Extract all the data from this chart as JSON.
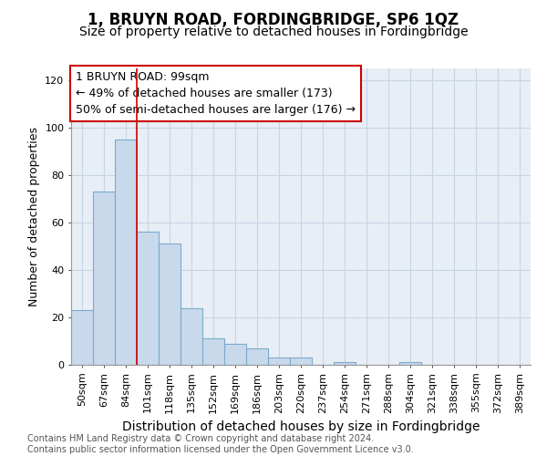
{
  "title": "1, BRUYN ROAD, FORDINGBRIDGE, SP6 1QZ",
  "subtitle": "Size of property relative to detached houses in Fordingbridge",
  "xlabel": "Distribution of detached houses by size in Fordingbridge",
  "ylabel": "Number of detached properties",
  "categories": [
    "50sqm",
    "67sqm",
    "84sqm",
    "101sqm",
    "118sqm",
    "135sqm",
    "152sqm",
    "169sqm",
    "186sqm",
    "203sqm",
    "220sqm",
    "237sqm",
    "254sqm",
    "271sqm",
    "288sqm",
    "304sqm",
    "321sqm",
    "338sqm",
    "355sqm",
    "372sqm",
    "389sqm"
  ],
  "values": [
    23,
    73,
    95,
    56,
    51,
    24,
    11,
    9,
    7,
    3,
    3,
    0,
    1,
    0,
    0,
    1,
    0,
    0,
    0,
    0,
    0
  ],
  "bar_color": "#c9d9ec",
  "bar_edge_color": "#7aaacc",
  "annotation_text": "1 BRUYN ROAD: 99sqm\n← 49% of detached houses are smaller (173)\n50% of semi-detached houses are larger (176) →",
  "annotation_box_color": "#ffffff",
  "annotation_box_edge": "#cc0000",
  "red_line_x": 2.5,
  "ylim": [
    0,
    125
  ],
  "yticks": [
    0,
    20,
    40,
    60,
    80,
    100,
    120
  ],
  "grid_color": "#c8d4e3",
  "background_color": "#e8eef5",
  "footer": "Contains HM Land Registry data © Crown copyright and database right 2024.\nContains public sector information licensed under the Open Government Licence v3.0.",
  "title_fontsize": 12,
  "subtitle_fontsize": 10,
  "xlabel_fontsize": 10,
  "ylabel_fontsize": 9,
  "tick_fontsize": 8,
  "annotation_fontsize": 9,
  "footer_fontsize": 7
}
